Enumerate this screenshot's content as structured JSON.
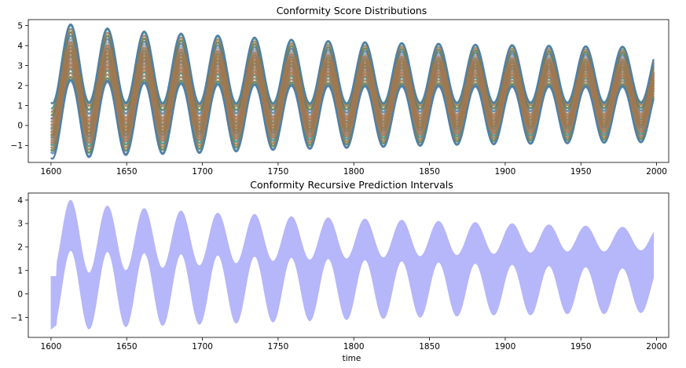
{
  "chart_data": [
    {
      "type": "line",
      "title": "Conformity Score Distributions",
      "xlabel": "",
      "ylabel": "",
      "xlim": [
        1585,
        2008
      ],
      "ylim": [
        -1.85,
        5.3
      ],
      "x_ticks": [
        1600,
        1650,
        1700,
        1750,
        1800,
        1850,
        1900,
        1950,
        2000
      ],
      "y_ticks": [
        -1,
        0,
        1,
        2,
        3,
        4,
        5
      ],
      "x_range": [
        1600,
        1998
      ],
      "period": 24.3,
      "grid": false,
      "legend": "none",
      "series_count": 16,
      "peak_x": [
        1613,
        1637,
        1661,
        1685,
        1710,
        1734,
        1758,
        1783,
        1807,
        1831,
        1855,
        1880,
        1904,
        1928,
        1952,
        1977
      ],
      "upper_envelope_peaks": [
        5.0,
        4.8,
        4.65,
        4.55,
        4.45,
        4.35,
        4.25,
        4.18,
        4.12,
        4.08,
        4.05,
        4.0,
        3.98,
        3.95,
        3.92,
        3.9
      ],
      "lower_envelope_troughs": [
        -1.6,
        -1.45,
        -1.4,
        -1.35,
        -1.3,
        -1.2,
        -1.15,
        -1.1,
        -1.05,
        -1.0,
        -0.95,
        -0.9,
        -0.9,
        -0.85,
        -0.85,
        -0.8
      ],
      "colors": [
        "#4f7fa6",
        "#5a7a4a",
        "#a07850",
        "#3f8f8a",
        "#c07a6a",
        "#9aa0a8"
      ]
    },
    {
      "type": "area",
      "title": "Conformity Recursive Prediction Intervals",
      "xlabel": "time",
      "ylabel": "",
      "xlim": [
        1585,
        2008
      ],
      "ylim": [
        -1.85,
        4.3
      ],
      "x_ticks": [
        1600,
        1650,
        1700,
        1750,
        1800,
        1850,
        1900,
        1950,
        2000
      ],
      "y_ticks": [
        -1,
        0,
        1,
        2,
        3,
        4
      ],
      "x_range": [
        1600,
        1998
      ],
      "period": 24.3,
      "grid": false,
      "legend": "none",
      "fill_color": "#b6b6fa",
      "peak_x": [
        1613,
        1637,
        1661,
        1685,
        1710,
        1734,
        1758,
        1783,
        1807,
        1831,
        1855,
        1880,
        1904,
        1928,
        1952,
        1977
      ],
      "upper_band_peaks": [
        4.0,
        3.75,
        3.65,
        3.55,
        3.45,
        3.4,
        3.3,
        3.25,
        3.2,
        3.15,
        3.1,
        3.05,
        3.0,
        2.95,
        2.9,
        2.85
      ],
      "upper_band_troughs": [
        0.9,
        1.0,
        1.1,
        1.2,
        1.3,
        1.4,
        1.45,
        1.5,
        1.55,
        1.6,
        1.65,
        1.7,
        1.75,
        1.8,
        1.8,
        1.85
      ],
      "lower_band_peaks": [
        1.85,
        1.8,
        1.75,
        1.7,
        1.65,
        1.6,
        1.55,
        1.5,
        1.45,
        1.4,
        1.35,
        1.3,
        1.25,
        1.2,
        1.15,
        1.1
      ],
      "lower_band_troughs": [
        -1.5,
        -1.4,
        -1.35,
        -1.3,
        -1.25,
        -1.2,
        -1.15,
        -1.1,
        -1.05,
        -1.0,
        -0.95,
        -0.9,
        -0.9,
        -0.85,
        -0.85,
        -0.8
      ]
    }
  ]
}
